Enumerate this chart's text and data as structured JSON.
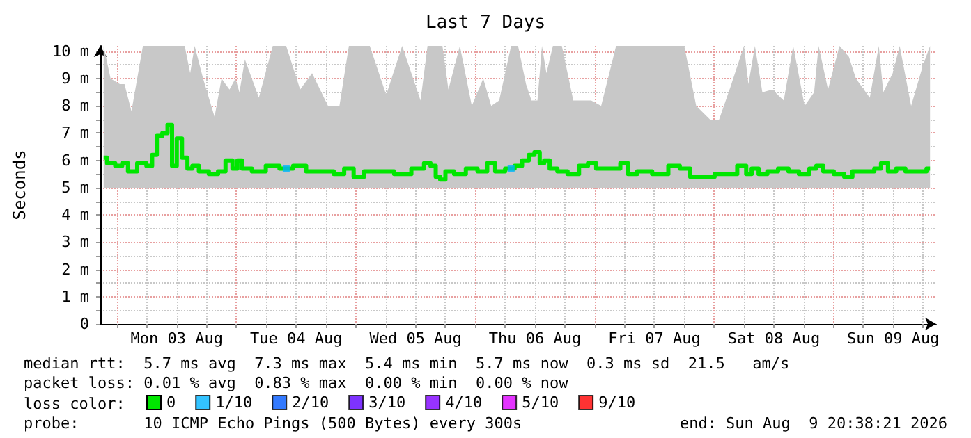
{
  "chart_data": {
    "type": "step",
    "title": "Last 7 Days",
    "ylabel": "Seconds",
    "legend_title": "loss color:",
    "legend": "bottom left",
    "grid": true,
    "marker": "none",
    "xlim": [
      "2026-08-02T20:38",
      "2026-08-09T20:38"
    ],
    "ylim": [
      0,
      10.2
    ],
    "xticks": [
      {
        "value": "2026-08-03T00:00",
        "label": null
      },
      {
        "value": "2026-08-03T06:00",
        "label": null
      },
      {
        "value": "2026-08-03T12:00",
        "label": "Mon 03 Aug"
      },
      {
        "value": "2026-08-03T18:00",
        "label": null
      },
      {
        "value": "2026-08-04T00:00",
        "label": null
      },
      {
        "value": "2026-08-04T06:00",
        "label": null
      },
      {
        "value": "2026-08-04T12:00",
        "label": "Tue 04 Aug"
      },
      {
        "value": "2026-08-04T18:00",
        "label": null
      },
      {
        "value": "2026-08-05T00:00",
        "label": null
      },
      {
        "value": "2026-08-05T06:00",
        "label": null
      },
      {
        "value": "2026-08-05T12:00",
        "label": "Wed 05 Aug"
      },
      {
        "value": "2026-08-05T18:00",
        "label": null
      },
      {
        "value": "2026-08-06T00:00",
        "label": null
      },
      {
        "value": "2026-08-06T06:00",
        "label": null
      },
      {
        "value": "2026-08-06T12:00",
        "label": "Thu 06 Aug"
      },
      {
        "value": "2026-08-06T18:00",
        "label": null
      },
      {
        "value": "2026-08-07T00:00",
        "label": null
      },
      {
        "value": "2026-08-07T06:00",
        "label": null
      },
      {
        "value": "2026-08-07T12:00",
        "label": "Fri 07 Aug"
      },
      {
        "value": "2026-08-07T18:00",
        "label": null
      },
      {
        "value": "2026-08-08T00:00",
        "label": null
      },
      {
        "value": "2026-08-08T06:00",
        "label": null
      },
      {
        "value": "2026-08-08T12:00",
        "label": "Sat 08 Aug"
      },
      {
        "value": "2026-08-08T18:00",
        "label": null
      },
      {
        "value": "2026-08-09T00:00",
        "label": null
      },
      {
        "value": "2026-08-09T06:00",
        "label": null
      },
      {
        "value": "2026-08-09T12:00",
        "label": "Sun 09 Aug"
      },
      {
        "value": "2026-08-09T18:00",
        "label": null
      }
    ],
    "yticks": [
      0,
      {
        "value": 0.5,
        "label": null
      },
      {
        "value": 1,
        "label": "1 m"
      },
      {
        "value": 1.5,
        "label": null
      },
      {
        "value": 2,
        "label": "2 m"
      },
      {
        "value": 2.5,
        "label": null
      },
      {
        "value": 3,
        "label": "3 m"
      },
      {
        "value": 3.5,
        "label": null
      },
      {
        "value": 4,
        "label": "4 m"
      },
      {
        "value": 4.5,
        "label": null
      },
      {
        "value": 5,
        "label": "5 m"
      },
      {
        "value": 5.5,
        "label": null
      },
      {
        "value": 6,
        "label": "6 m"
      },
      {
        "value": 6.5,
        "label": null
      },
      {
        "value": 7,
        "label": "7 m"
      },
      {
        "value": 7.5,
        "label": null
      },
      {
        "value": 8,
        "label": "8 m"
      },
      {
        "value": 8.5,
        "label": null
      },
      {
        "value": 9,
        "label": "9 m"
      },
      {
        "value": 9.5,
        "label": null
      },
      {
        "value": 10,
        "label": "10 m"
      }
    ],
    "series": [
      {
        "name": "0",
        "color": "#00e600",
        "x": [
          "2026-08-02T21:18",
          "2026-08-02T22:42",
          "2026-08-03T00:34",
          "2026-08-03T01:30",
          "2026-08-03T02:54",
          "2026-08-03T05:12",
          "2026-08-03T06:36",
          "2026-08-03T07:30",
          "2026-08-03T08:30",
          "2026-08-03T09:42",
          "2026-08-03T10:36",
          "2026-08-03T11:30",
          "2026-08-03T12:30",
          "2026-08-03T13:36",
          "2026-08-03T14:42",
          "2026-08-03T15:36",
          "2026-08-03T17:18",
          "2026-08-03T19:36",
          "2026-08-03T21:00",
          "2026-08-03T22:36",
          "2026-08-03T23:48",
          "2026-08-04T00:36",
          "2026-08-04T01:42",
          "2026-08-04T04:30",
          "2026-08-04T07:18",
          "2026-08-04T10:00",
          "2026-08-04T12:48",
          "2026-08-04T15:12",
          "2026-08-04T18:24",
          "2026-08-04T20:42",
          "2026-08-04T22:36",
          "2026-08-05T00:30",
          "2026-08-05T02:48",
          "2026-08-05T06:06",
          "2026-08-05T09:18",
          "2026-08-05T13:00",
          "2026-08-05T14:24",
          "2026-08-05T15:36",
          "2026-08-05T16:30",
          "2026-08-05T17:24",
          "2026-08-05T18:36",
          "2026-08-05T20:54",
          "2026-08-05T23:18",
          "2026-08-06T01:36",
          "2026-08-06T03:12",
          "2026-08-06T04:48",
          "2026-08-06T07:12",
          "2026-08-06T08:36",
          "2026-08-06T10:12",
          "2026-08-06T11:18",
          "2026-08-06T12:30",
          "2026-08-06T13:24",
          "2026-08-06T14:18",
          "2026-08-06T15:36",
          "2026-08-06T17:24",
          "2026-08-06T19:42",
          "2026-08-06T22:00",
          "2026-08-06T23:18",
          "2026-08-07T01:18",
          "2026-08-07T04:18",
          "2026-08-07T06:00",
          "2026-08-07T07:24",
          "2026-08-07T09:42",
          "2026-08-07T13:24",
          "2026-08-07T16:12",
          "2026-08-07T18:00",
          "2026-08-07T20:24",
          "2026-08-07T23:12",
          "2026-08-08T01:00",
          "2026-08-08T03:18",
          "2026-08-08T06:00",
          "2026-08-08T06:54",
          "2026-08-08T08:12",
          "2026-08-08T09:42",
          "2026-08-08T11:42",
          "2026-08-08T14:00",
          "2026-08-08T15:54",
          "2026-08-08T18:12",
          "2026-08-08T20:06",
          "2026-08-08T21:00",
          "2026-08-08T22:54",
          "2026-08-09T01:12",
          "2026-08-09T03:06",
          "2026-08-09T04:30",
          "2026-08-09T07:18",
          "2026-08-09T09:06",
          "2026-08-09T10:00",
          "2026-08-09T11:54",
          "2026-08-09T13:18",
          "2026-08-09T15:36",
          "2026-08-09T18:00",
          "2026-08-09T19:24"
        ],
        "values": [
          6.1,
          5.9,
          5.8,
          5.9,
          5.6,
          5.9,
          5.8,
          6.2,
          6.9,
          7.0,
          7.3,
          5.8,
          6.8,
          6.1,
          5.7,
          5.8,
          5.6,
          5.5,
          5.6,
          6.0,
          5.7,
          6.0,
          5.7,
          5.6,
          5.8,
          5.7,
          5.8,
          5.6,
          5.6,
          5.5,
          5.7,
          5.4,
          5.6,
          5.6,
          5.5,
          5.7,
          5.9,
          5.8,
          5.4,
          5.3,
          5.6,
          5.5,
          5.7,
          5.6,
          5.9,
          5.6,
          5.7,
          5.8,
          6.0,
          6.2,
          6.3,
          5.9,
          6.0,
          5.7,
          5.6,
          5.5,
          5.8,
          5.9,
          5.7,
          5.7,
          5.9,
          5.5,
          5.6,
          5.5,
          5.8,
          5.7,
          5.4,
          5.4,
          5.5,
          5.5,
          5.8,
          5.5,
          5.7,
          5.5,
          5.6,
          5.7,
          5.6,
          5.5,
          5.7,
          5.8,
          5.6,
          5.5,
          5.4,
          5.6,
          5.6,
          5.7,
          5.9,
          5.6,
          5.7,
          5.6,
          5.6,
          5.7
        ],
        "lower": [
          5.0,
          5.0,
          5.0,
          5.0,
          5.0,
          5.0,
          5.0,
          5.0,
          5.0,
          5.0,
          5.0,
          5.0,
          5.0,
          5.0,
          5.0,
          5.0,
          5.0,
          5.0,
          5.0,
          5.0,
          5.0,
          5.0,
          5.0,
          5.0,
          5.0,
          5.0,
          5.0,
          5.0,
          5.0,
          5.0,
          5.0,
          5.0,
          5.0,
          5.0,
          5.0,
          5.0,
          5.0,
          5.0,
          5.0,
          5.0,
          5.0,
          5.0,
          5.0,
          5.0,
          5.0,
          5.0,
          5.0,
          5.0,
          5.0,
          5.0,
          5.0,
          5.0,
          5.0,
          5.0,
          5.0,
          5.0,
          5.0,
          5.0,
          5.0,
          5.0,
          5.0,
          5.0,
          5.0,
          5.0,
          5.0,
          5.0,
          5.0,
          5.0,
          5.0,
          5.0,
          5.0,
          5.0,
          5.0,
          5.0,
          5.0,
          5.0,
          5.0,
          5.0,
          5.0,
          5.0,
          5.0,
          5.0,
          5.0,
          5.0,
          5.0,
          5.0,
          5.0,
          5.0,
          5.0,
          5.0,
          5.0,
          5.0
        ],
        "upper": [
          10.2,
          9.0,
          8.8,
          8.8,
          7.8,
          10.2,
          10.2,
          10.2,
          10.2,
          10.2,
          10.2,
          10.2,
          10.2,
          10.2,
          9.2,
          10.2,
          9.0,
          7.6,
          9.0,
          8.6,
          9.0,
          8.5,
          9.7,
          8.3,
          10.2,
          10.2,
          8.6,
          9.2,
          8.0,
          8.0,
          10.2,
          10.2,
          10.2,
          8.4,
          10.2,
          8.2,
          10.2,
          10.2,
          10.2,
          10.2,
          8.6,
          10.2,
          8.0,
          9.0,
          8.0,
          8.2,
          10.2,
          10.2,
          8.8,
          8.2,
          8.2,
          10.2,
          9.2,
          10.2,
          10.2,
          8.2,
          8.2,
          8.2,
          8.0,
          10.2,
          10.2,
          10.2,
          10.2,
          10.2,
          10.2,
          10.2,
          8.0,
          7.5,
          7.5,
          8.7,
          10.2,
          8.8,
          10.2,
          8.5,
          8.6,
          8.2,
          10.2,
          8.0,
          8.5,
          10.2,
          8.6,
          10.2,
          9.8,
          9.0,
          8.3,
          10.2,
          8.5,
          9.2,
          10.2,
          8.0,
          9.5,
          10.2
        ]
      },
      {
        "name": "1/10",
        "type": "scatter",
        "marker": "square",
        "color": "#00b4ff",
        "x": [
          "2026-08-04T10:00",
          "2026-08-06T07:12"
        ],
        "values": [
          5.7,
          5.7
        ]
      },
      {
        "name": "2/10",
        "type": "scatter",
        "marker": "square",
        "color": "#0059ff"
      },
      {
        "name": "3/10",
        "type": "scatter",
        "marker": "square",
        "color": "#5e00ff"
      },
      {
        "name": "4/10",
        "type": "scatter",
        "marker": "square",
        "color": "#7e00ff"
      },
      {
        "name": "5/10",
        "type": "scatter",
        "marker": "square",
        "color": "#dd00ff"
      },
      {
        "name": "9/10",
        "type": "scatter",
        "marker": "square",
        "color": "#ff0000"
      }
    ],
    "annotations": [
      "median rtt:  5.7 ms avg  7.3 ms max  5.4 ms min  5.7 ms now  0.3 ms sd  21.5   am/s",
      "packet loss: 0.01 % avg  0.83 % max  0.00 % min  0.00 % now",
      "probe:       10 ICMP Echo Pings (500 Bytes) every 300s",
      "end: Sun Aug  9 20:38:21 2026"
    ]
  }
}
